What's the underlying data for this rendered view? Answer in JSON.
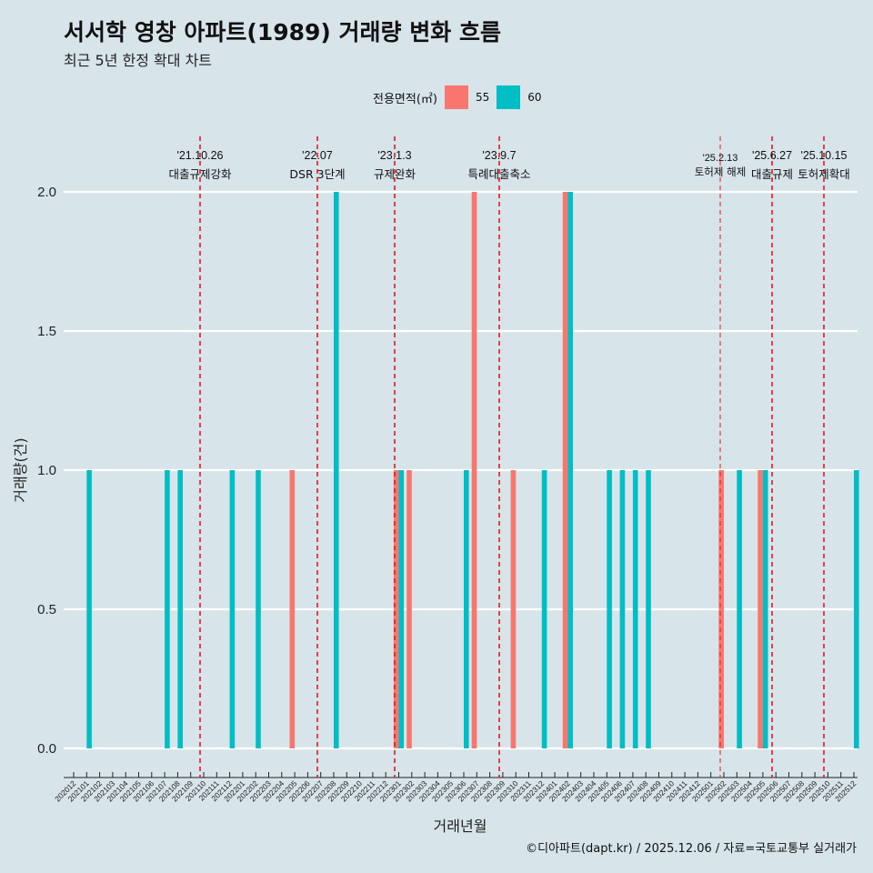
{
  "title": "서서학 영창 아파트(1989) 거래량 변화 흐름",
  "subtitle": "최근 5년 한정 확대 차트",
  "legend": {
    "title": "전용면적(㎡)",
    "items": [
      {
        "label": "55",
        "color": "#F8766D"
      },
      {
        "label": "60",
        "color": "#00BFC4"
      }
    ]
  },
  "source": "©디아파트(dapt.kr) / 2025.12.06 / 자료=국토교통부 실거래가",
  "chart_data": {
    "type": "bar",
    "title": "서서학 영창 아파트(1989) 거래량 변화 흐름",
    "xlabel": "거래년월",
    "ylabel": "거래량(건)",
    "ylim": [
      0,
      2
    ],
    "yticks": [
      "0.0",
      "0.5",
      "1.0",
      "1.5",
      "2.0"
    ],
    "categories": [
      "202012",
      "202101",
      "202102",
      "202103",
      "202104",
      "202105",
      "202106",
      "202107",
      "202108",
      "202109",
      "202110",
      "202111",
      "202112",
      "202201",
      "202202",
      "202203",
      "202204",
      "202205",
      "202206",
      "202207",
      "202208",
      "202209",
      "202210",
      "202211",
      "202212",
      "202301",
      "202302",
      "202303",
      "202304",
      "202305",
      "202306",
      "202307",
      "202308",
      "202309",
      "202310",
      "202311",
      "202312",
      "202401",
      "202402",
      "202403",
      "202404",
      "202405",
      "202406",
      "202407",
      "202408",
      "202409",
      "202410",
      "202411",
      "202412",
      "202501",
      "202502",
      "202503",
      "202504",
      "202505",
      "202506",
      "202507",
      "202508",
      "202509",
      "202510",
      "202511",
      "202512"
    ],
    "series": [
      {
        "name": "55",
        "color": "#F8766D",
        "values": [
          0,
          0,
          0,
          0,
          0,
          0,
          0,
          0,
          0,
          0,
          0,
          0,
          0,
          0,
          0,
          0,
          0,
          1,
          0,
          0,
          0,
          0,
          0,
          0,
          0,
          1,
          1,
          0,
          0,
          0,
          0,
          2,
          0,
          0,
          1,
          0,
          0,
          0,
          2,
          0,
          0,
          0,
          0,
          0,
          0,
          0,
          0,
          0,
          0,
          0,
          1,
          0,
          0,
          1,
          0,
          0,
          0,
          0,
          0,
          0,
          0
        ]
      },
      {
        "name": "60",
        "color": "#00BFC4",
        "values": [
          0,
          1,
          0,
          0,
          0,
          0,
          0,
          1,
          1,
          0,
          0,
          0,
          1,
          0,
          1,
          0,
          0,
          0,
          0,
          0,
          2,
          0,
          0,
          0,
          0,
          1,
          0,
          0,
          0,
          0,
          1,
          0,
          0,
          0,
          0,
          0,
          1,
          0,
          2,
          0,
          0,
          1,
          1,
          1,
          1,
          0,
          0,
          0,
          0,
          0,
          0,
          1,
          0,
          1,
          0,
          0,
          0,
          0,
          0,
          0,
          1
        ]
      }
    ],
    "events": [
      {
        "date": "'21.10.26",
        "label": "대출규제강화"
      },
      {
        "date": "'22.07",
        "label": "DSR 3단계"
      },
      {
        "date": "'23.1.3",
        "label": "규제완화"
      },
      {
        "date": "'23.9.7",
        "label": "특례대출축소"
      },
      {
        "date": "'25.2.13",
        "label": "토허제 해제"
      },
      {
        "date": "'25.6.27",
        "label": "대출규제"
      },
      {
        "date": "'25.10.15",
        "label": "토허제확대"
      }
    ]
  }
}
